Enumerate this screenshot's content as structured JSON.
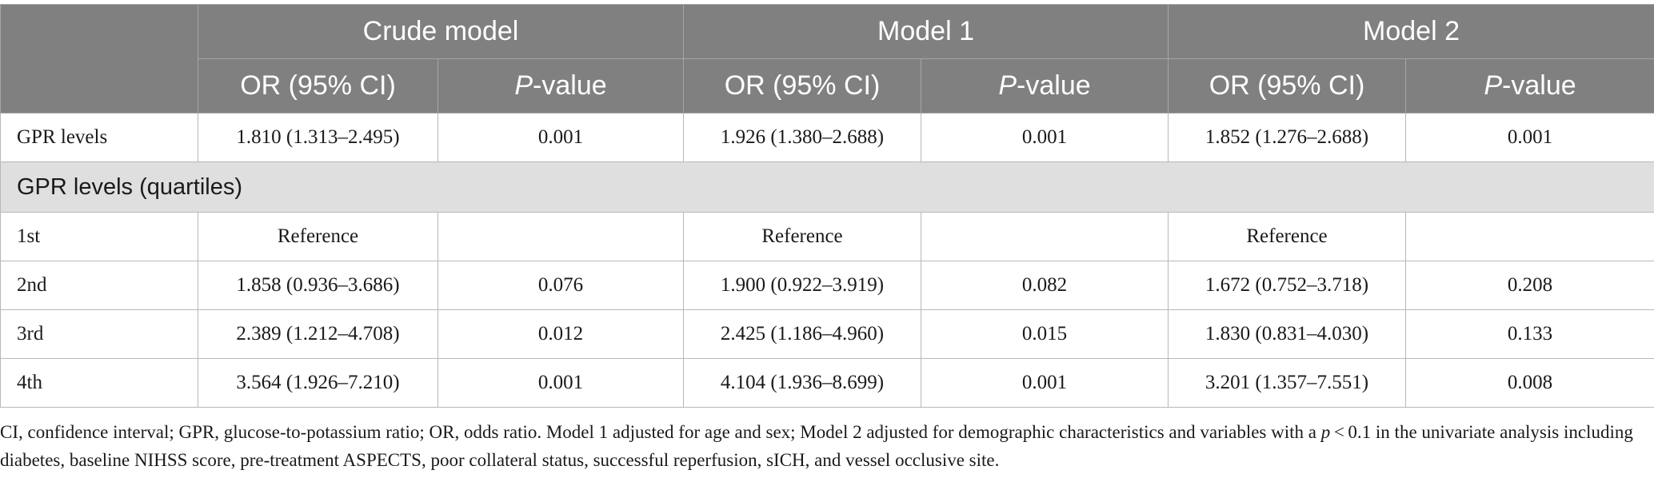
{
  "header": {
    "models": [
      "Crude model",
      "Model 1",
      "Model 2"
    ],
    "or_label": "OR (95% CI)",
    "p_italic": "P",
    "p_suffix": "-value"
  },
  "rows_top": [
    {
      "label": "GPR levels",
      "cells": [
        "1.810 (1.313–2.495)",
        "0.001",
        "1.926 (1.380–2.688)",
        "0.001",
        "1.852 (1.276–2.688)",
        "0.001"
      ]
    }
  ],
  "section": {
    "label": "GPR levels (quartiles)"
  },
  "rows_quartiles": [
    {
      "label": "1st",
      "cells": [
        "Reference",
        "",
        "Reference",
        "",
        "Reference",
        ""
      ]
    },
    {
      "label": "2nd",
      "cells": [
        "1.858 (0.936–3.686)",
        "0.076",
        "1.900 (0.922–3.919)",
        "0.082",
        "1.672 (0.752–3.718)",
        "0.208"
      ]
    },
    {
      "label": "3rd",
      "cells": [
        "2.389 (1.212–4.708)",
        "0.012",
        "2.425 (1.186–4.960)",
        "0.015",
        "1.830 (0.831–4.030)",
        "0.133"
      ]
    },
    {
      "label": "4th",
      "cells": [
        "3.564 (1.926–7.210)",
        "0.001",
        "4.104 (1.936–8.699)",
        "0.001",
        "3.201 (1.357–7.551)",
        "0.008"
      ]
    }
  ],
  "footnote": {
    "part1": "CI, confidence interval; GPR, glucose-to-potassium ratio; OR, odds ratio. Model 1 adjusted for age and sex; Model 2 adjusted for demographic characteristics and variables with a ",
    "p_italic": "p",
    "part2": " < 0.1 in the univariate analysis including diabetes, baseline NIHSS score, pre-treatment ASPECTS, poor collateral status, successful reperfusion, sICH, and vessel occlusive site."
  }
}
